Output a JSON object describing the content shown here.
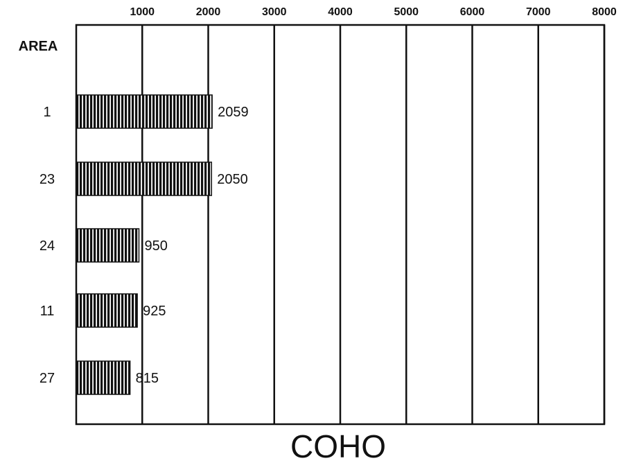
{
  "chart_data": {
    "type": "bar",
    "orientation": "horizontal",
    "title": "COHO",
    "category_axis_label": "AREA",
    "categories": [
      "1",
      "23",
      "24",
      "11",
      "27"
    ],
    "values": [
      2059,
      2050,
      950,
      925,
      815
    ],
    "data_labels": [
      "2059",
      "2050",
      "950",
      "925",
      "815"
    ],
    "x_ticks": [
      "1000",
      "2000",
      "3000",
      "4000",
      "5000",
      "6000",
      "7000",
      "8000"
    ],
    "xlim": [
      0,
      8000
    ],
    "grid": "vertical lines at each 1000",
    "bar_fill": "vertical hatch",
    "colors": {
      "ink": "#111111",
      "background": "#ffffff"
    }
  }
}
